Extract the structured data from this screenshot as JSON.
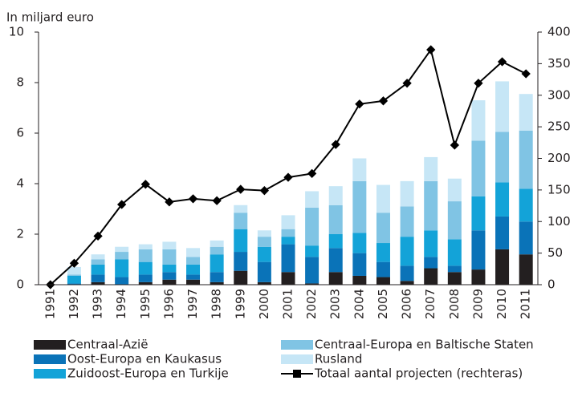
{
  "chart_data": {
    "type": "bar",
    "stacked": true,
    "ylabel": "In miljard euro",
    "categories": [
      "1991",
      "1992",
      "1993",
      "1994",
      "1995",
      "1996",
      "1997",
      "1998",
      "1999",
      "2000",
      "2001",
      "2002",
      "2003",
      "2004",
      "2005",
      "2006",
      "2007",
      "2008",
      "2009",
      "2010",
      "2011"
    ],
    "ylim": [
      0,
      10
    ],
    "yticks": [
      0,
      2,
      4,
      6,
      8,
      10
    ],
    "y2lim": [
      0,
      400
    ],
    "y2ticks": [
      0,
      50,
      100,
      150,
      200,
      250,
      300,
      350,
      400
    ],
    "series": [
      {
        "name": "Centraal-Azië",
        "color": "#231f20",
        "values": [
          0,
          0,
          0.1,
          0,
          0.1,
          0.2,
          0.2,
          0.1,
          0.55,
          0.1,
          0.5,
          0.05,
          0.5,
          0.35,
          0.3,
          0.15,
          0.65,
          0.5,
          0.6,
          1.4,
          1.2
        ]
      },
      {
        "name": "Oost-Europa en Kaukasus",
        "color": "#0a73b8",
        "values": [
          0,
          0.05,
          0.3,
          0.3,
          0.3,
          0.3,
          0.2,
          0.4,
          0.75,
          0.8,
          1.1,
          1.05,
          0.95,
          0.9,
          0.6,
          0.6,
          0.45,
          0.25,
          1.55,
          1.3,
          1.3
        ]
      },
      {
        "name": "Zuidoost-Europa en Turkije",
        "color": "#13a3d8",
        "values": [
          0,
          0.3,
          0.4,
          0.7,
          0.5,
          0.3,
          0.4,
          0.7,
          0.9,
          0.6,
          0.3,
          0.45,
          0.55,
          0.8,
          0.75,
          1.15,
          1.05,
          1.05,
          1.35,
          1.35,
          1.3
        ]
      },
      {
        "name": "Centraal-Europa en Baltische Staten",
        "color": "#80c4e4",
        "values": [
          0,
          0.05,
          0.2,
          0.3,
          0.5,
          0.6,
          0.3,
          0.3,
          0.65,
          0.4,
          0.3,
          1.5,
          1.15,
          2.05,
          1.2,
          1.2,
          1.95,
          1.5,
          2.2,
          2.0,
          2.3
        ]
      },
      {
        "name": "Rusland",
        "color": "#c6e6f6",
        "values": [
          0,
          0.3,
          0.2,
          0.2,
          0.2,
          0.3,
          0.35,
          0.25,
          0.3,
          0.25,
          0.55,
          0.65,
          0.75,
          0.9,
          1.1,
          1.0,
          0.95,
          0.9,
          1.6,
          2.0,
          1.45
        ]
      },
      {
        "name": "Totaal aantal projecten (rechteras)",
        "color": "#000000",
        "type": "line",
        "axis": "y2",
        "values": [
          0,
          34,
          77,
          127,
          159,
          131,
          136,
          133,
          151,
          149,
          170,
          176,
          222,
          286,
          291,
          319,
          372,
          221,
          319,
          353,
          334
        ]
      }
    ]
  }
}
